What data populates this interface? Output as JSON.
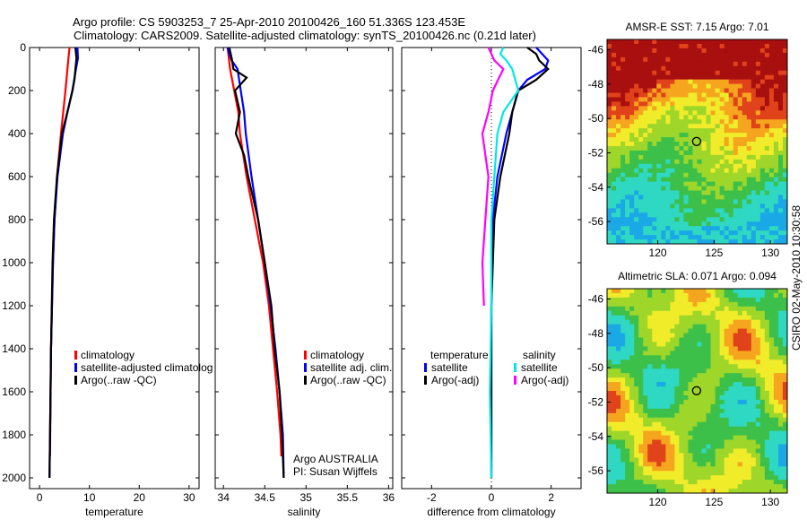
{
  "title_line1": "Argo profile: CS 5903253_7 25-Apr-2010 20100426_160 51.336S 123.453E",
  "title_line2": "Climatology: CARS2009. Satellite-adjusted climatology: synTS_20100426.nc (0.21d later)",
  "side_label": "CSIRO 02-May-2010 10:30:58",
  "colors": {
    "climatology": "#ff0000",
    "satellite": "#0000ff",
    "argo": "#000000",
    "sat_salinity": "#00e8e8",
    "argo_salinity": "#ff00ff"
  },
  "chart_data": [
    {
      "type": "line",
      "xlabel": "temperature",
      "x_ticks": [
        "0",
        "10",
        "20",
        "30"
      ],
      "y_ticks": [
        "0",
        "200",
        "400",
        "600",
        "800",
        "1000",
        "1200",
        "1400",
        "1600",
        "1800",
        "2000"
      ],
      "xlim": [
        -2,
        32
      ],
      "ylim": [
        2050,
        0
      ],
      "legend": [
        "climatology",
        "satellite-adjusted climatolog",
        "Argo(..raw -QC)"
      ],
      "series": [
        {
          "name": "climatology",
          "color": "#ff0000",
          "depth": [
            0,
            100,
            200,
            400,
            600,
            800,
            1000,
            1400,
            1900
          ],
          "values": [
            6.0,
            5.6,
            5.2,
            4.3,
            3.5,
            3.0,
            2.7,
            2.3,
            2.1
          ]
        },
        {
          "name": "satellite-adjusted climatolog",
          "color": "#0000ff",
          "depth": [
            0,
            50,
            100,
            200,
            300,
            400,
            600,
            800,
            1000,
            1400,
            1800,
            2000
          ],
          "values": [
            7.6,
            7.7,
            7.3,
            6.6,
            5.6,
            4.7,
            3.6,
            3.0,
            2.7,
            2.3,
            2.1,
            2.0
          ]
        },
        {
          "name": "Argo(..raw -QC)",
          "color": "#000000",
          "depth": [
            0,
            50,
            100,
            150,
            200,
            300,
            400,
            600,
            800,
            1000,
            1400,
            1800,
            2000
          ],
          "values": [
            7.2,
            7.4,
            7.2,
            7.0,
            6.6,
            5.6,
            4.5,
            3.5,
            2.9,
            2.6,
            2.3,
            2.1,
            2.0
          ]
        }
      ]
    },
    {
      "type": "line",
      "xlabel": "salinity",
      "x_ticks": [
        "34",
        "34.5",
        "35",
        "35.5",
        "36"
      ],
      "y_ticks": [
        "0",
        "200",
        "400",
        "600",
        "800",
        "1000",
        "1200",
        "1400",
        "1600",
        "1800",
        "2000"
      ],
      "xlim": [
        33.9,
        36.05
      ],
      "ylim": [
        2050,
        0
      ],
      "legend": [
        "climatology",
        "satellite adj. clim.",
        "Argo(..raw -QC)"
      ],
      "annotation": [
        "Argo AUSTRALIA",
        "PI: Susan Wijffels"
      ],
      "series": [
        {
          "name": "climatology",
          "color": "#ff0000",
          "depth": [
            0,
            100,
            200,
            300,
            400,
            600,
            800,
            1000,
            1200,
            1400,
            1600,
            1800,
            1900
          ],
          "values": [
            34.05,
            34.08,
            34.13,
            34.18,
            34.2,
            34.28,
            34.38,
            34.48,
            34.55,
            34.6,
            34.65,
            34.69,
            34.7
          ]
        },
        {
          "name": "satellite adj. clim.",
          "color": "#0000ff",
          "depth": [
            0,
            30,
            60,
            100,
            200,
            300,
            400,
            600,
            800,
            1000,
            1200,
            1400,
            1600,
            1800,
            2000
          ],
          "values": [
            34.05,
            34.07,
            34.1,
            34.17,
            34.21,
            34.25,
            34.27,
            34.34,
            34.42,
            34.5,
            34.57,
            34.63,
            34.68,
            34.72,
            34.73
          ]
        },
        {
          "name": "Argo(..raw -QC)",
          "color": "#000000",
          "depth": [
            0,
            50,
            100,
            140,
            200,
            300,
            400,
            500,
            600,
            800,
            1000,
            1200,
            1400,
            1600,
            1800,
            2000
          ],
          "values": [
            34.07,
            34.1,
            34.12,
            34.28,
            34.14,
            34.2,
            34.15,
            34.25,
            34.3,
            34.42,
            34.5,
            34.58,
            34.62,
            34.68,
            34.71,
            34.73
          ]
        }
      ]
    },
    {
      "type": "line",
      "xlabel": "difference from climatology",
      "x_ticks": [
        "-2",
        "0",
        "2"
      ],
      "y_ticks": [
        "0",
        "200",
        "400",
        "600",
        "800",
        "1000",
        "1200",
        "1400",
        "1600",
        "1800",
        "2000"
      ],
      "xlim": [
        -3,
        3
      ],
      "ylim": [
        2050,
        0
      ],
      "legend_groups": [
        {
          "title": "temperature",
          "items": [
            "satellite",
            "Argo(-adj)"
          ]
        },
        {
          "title": "salinity",
          "items": [
            "satellite",
            "Argo(-adj)"
          ]
        }
      ],
      "series": [
        {
          "name": "satellite",
          "group": "temperature",
          "color": "#0000ff",
          "depth": [
            0,
            30,
            60,
            100,
            150,
            200,
            300,
            400,
            600,
            800,
            1200,
            1600,
            2000
          ],
          "values": [
            1.5,
            1.7,
            1.9,
            1.8,
            1.2,
            0.9,
            0.7,
            0.5,
            0.2,
            0.05,
            0.0,
            0.0,
            0.0
          ]
        },
        {
          "name": "Argo(-adj)",
          "group": "temperature",
          "color": "#000000",
          "depth": [
            0,
            30,
            60,
            100,
            150,
            200,
            300,
            400,
            600,
            800,
            1200,
            1600,
            2000
          ],
          "values": [
            1.2,
            1.5,
            1.6,
            1.9,
            1.5,
            0.9,
            0.7,
            0.6,
            0.3,
            0.1,
            0.0,
            0.0,
            0.0
          ]
        },
        {
          "name": "satellite",
          "group": "salinity",
          "color": "#00e8e8",
          "depth": [
            0,
            30,
            60,
            100,
            200,
            300,
            400,
            600,
            800,
            1200,
            1600,
            2000
          ],
          "values": [
            0.4,
            0.3,
            0.5,
            0.7,
            0.9,
            0.4,
            0.2,
            0.1,
            0.0,
            0.0,
            -0.05,
            0.0
          ]
        },
        {
          "name": "Argo(-adj)",
          "group": "salinity",
          "color": "#ff00ff",
          "depth": [
            0,
            30,
            60,
            100,
            200,
            300,
            400,
            500,
            600,
            800,
            1000,
            1200
          ],
          "values": [
            -0.1,
            0.0,
            0.1,
            0.4,
            0.05,
            -0.1,
            -0.3,
            -0.2,
            -0.1,
            -0.2,
            -0.3,
            -0.25
          ]
        }
      ]
    },
    {
      "type": "heatmap",
      "title": "AMSR-E SST: 7.15 Argo: 7.01",
      "x_ticks": [
        "120",
        "125",
        "130"
      ],
      "y_ticks": [
        "-46",
        "-48",
        "-50",
        "-52",
        "-54",
        "-56"
      ],
      "xlim": [
        115.5,
        131.5
      ],
      "ylim": [
        -57.3,
        -45.4
      ],
      "marker": {
        "lon": 123.45,
        "lat": -51.34
      }
    },
    {
      "type": "heatmap",
      "title": "Altimetric SLA: 0.071 Argo: 0.094",
      "x_ticks": [
        "120",
        "125",
        "130"
      ],
      "y_ticks": [
        "-46",
        "-48",
        "-50",
        "-52",
        "-54",
        "-56"
      ],
      "xlim": [
        115.5,
        131.5
      ],
      "ylim": [
        -57.3,
        -45.4
      ],
      "marker": {
        "lon": 123.45,
        "lat": -51.34
      }
    }
  ]
}
